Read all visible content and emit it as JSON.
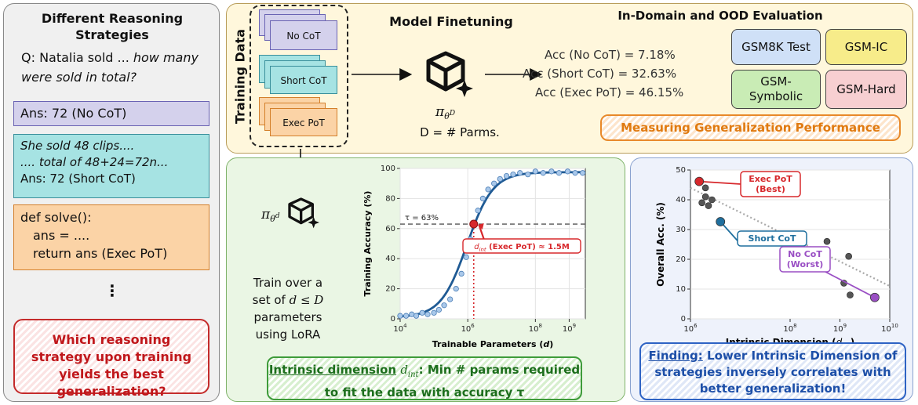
{
  "left": {
    "title": "Different Reasoning Strategies",
    "question_prefix": "Q: Natalia sold ...",
    "question_italic": " how many were sold in total?",
    "ans_no_cot": "Ans: 72 (No CoT)",
    "short_line1": "She sold 48 clips....",
    "short_line2": ".... total of 48+24=72n...",
    "short_ans": "Ans: 72 (Short CoT)",
    "code_line1": "def solve():",
    "code_line2": "ans = ....",
    "code_line3": "return ans (Exec PoT)",
    "ellipsis": "⋮",
    "question": "Which reasoning strategy upon training yields the best generalization?"
  },
  "top": {
    "training_data_label": "Training Data",
    "cards": [
      "No CoT",
      "Short CoT",
      "Exec PoT"
    ],
    "finetune_title": "Model Finetuning",
    "pi_big": "π",
    "pi_big_sub": "θ",
    "pi_big_sup": "D",
    "d_label": "D = # Parms.",
    "acc_lines": [
      "Acc (No CoT) = 7.18%",
      "Acc (Short CoT) = 32.63%",
      "Acc (Exec PoT) = 46.15%"
    ],
    "eval_title": "In-Domain and OOD Evaluation",
    "eval_boxes": [
      "GSM8K Test",
      "GSM-IC",
      "GSM-Symbolic",
      "GSM-Hard"
    ],
    "measuring": "Measuring Generalization Performance"
  },
  "middle": {
    "pi_small": "π",
    "pi_small_sub": "θ",
    "pi_small_sup": "d",
    "train_text_1": "Train over a",
    "train_text_2": "set of",
    "train_text_3": "parameters",
    "train_text_4": "using LoRA",
    "d_expr": "d ≤ D",
    "intrinsic_title": "Intrinsic dimension",
    "intrinsic_sym": "d",
    "intrinsic_sym_sub": "int",
    "intrinsic_rest": ": Min # params required to fit the data with accuracy τ"
  },
  "right": {
    "finding_label": "Finding:",
    "finding_text": " Lower Intrinsic Dimension of strategies inversely correlates with better generalization!"
  },
  "colors": {
    "no_cot": "#d4d1ec",
    "short_cot": "#a6e3e3",
    "exec_pot": "#fbd3a6",
    "gsm8k": "#cfe0f7",
    "gsm_ic": "#f7ec8a",
    "gsm_symbolic": "#c9ecb5",
    "gsm_hard": "#f7cfd1",
    "curve": "#1f5a94",
    "exec_point": "#d7282c",
    "short_point": "#1f6f9e",
    "no_point": "#9a4fc4"
  },
  "chart_data": [
    {
      "type": "line",
      "xlabel": "Trainable Parameters (d)",
      "ylabel": "Training Accuracy (%)",
      "x_scale": "log",
      "xlim": [
        10000,
        3000000000
      ],
      "ylim": [
        0,
        100
      ],
      "xticks": [
        "10^4",
        "10^6",
        "10^8",
        "10^9"
      ],
      "yticks": [
        "0",
        "20",
        "40",
        "60",
        "80",
        "100"
      ],
      "threshold_label": "τ = 63%",
      "threshold": 63,
      "annotation": "d_int (Exec PoT) ≈ 1.5M",
      "annotation_parts": {
        "sym": "d",
        "sub": "int",
        "rest": " (Exec PoT) ≈ 1.5M"
      },
      "highlight": {
        "x": 1500000,
        "y": 63
      },
      "series": [
        {
          "x": [
            10000,
            15000,
            22000,
            30000,
            45000,
            65000,
            100000,
            140000,
            200000,
            300000,
            450000,
            650000,
            900000,
            1200000,
            1500000,
            2000000,
            2800000,
            4000000,
            6000000,
            9000000,
            14000000,
            22000000,
            35000000,
            60000000,
            100000000,
            170000000,
            300000000,
            500000000,
            900000000,
            1500000000,
            2500000000
          ],
          "values": [
            2,
            2,
            3,
            2,
            4,
            3,
            4,
            6,
            9,
            13,
            20,
            30,
            41,
            53,
            63,
            72,
            80,
            86,
            90,
            93,
            95,
            96,
            97,
            96,
            98,
            97,
            98,
            97,
            98,
            97,
            97
          ]
        }
      ]
    },
    {
      "type": "scatter",
      "xlabel": "Intrinsic Dimension (d_int)",
      "ylabel": "Overall Acc. (%)",
      "x_scale": "log",
      "xlim": [
        1000000,
        10000000000
      ],
      "ylim": [
        0,
        50
      ],
      "xticks": [
        "10^6",
        "10^8",
        "10^9",
        "10^10"
      ],
      "yticks": [
        "0",
        "10",
        "20",
        "30",
        "40",
        "50"
      ],
      "points": [
        {
          "x": 1500000,
          "y": 46.15,
          "label": "Exec PoT (Best)",
          "highlight": "exec"
        },
        {
          "x": 1700000,
          "y": 39
        },
        {
          "x": 2000000,
          "y": 41
        },
        {
          "x": 2000000,
          "y": 44
        },
        {
          "x": 2300000,
          "y": 38
        },
        {
          "x": 2700000,
          "y": 40
        },
        {
          "x": 4000000,
          "y": 32.63,
          "label": "Short CoT",
          "highlight": "short"
        },
        {
          "x": 550000000,
          "y": 26
        },
        {
          "x": 1500000000,
          "y": 21
        },
        {
          "x": 1200000000,
          "y": 12
        },
        {
          "x": 1600000000,
          "y": 8
        },
        {
          "x": 5000000000,
          "y": 7.18,
          "label": "No CoT (Worst)",
          "highlight": "no"
        }
      ],
      "trend": {
        "x": [
          1000000,
          10000000000
        ],
        "y": [
          44,
          11
        ]
      },
      "labels": {
        "exec": [
          "Exec PoT",
          "(Best)"
        ],
        "short": [
          "Short CoT"
        ],
        "no": [
          "No CoT",
          "(Worst)"
        ]
      }
    }
  ]
}
